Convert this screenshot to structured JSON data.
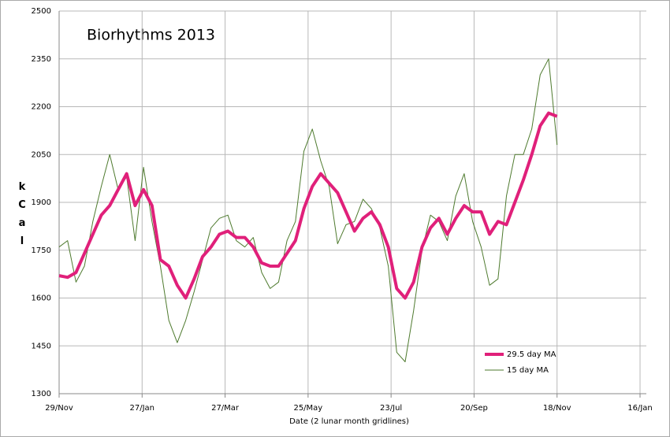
{
  "chart_data": {
    "type": "line",
    "title": "Biorhythms 2013",
    "xlabel": "Date (2 lunar month  gridlines)",
    "ylabel": "kCal",
    "x": [
      0,
      6,
      12,
      18,
      24,
      30,
      36,
      42,
      48,
      54,
      60,
      66,
      72,
      78,
      84,
      90,
      96,
      102,
      108,
      114,
      120,
      126,
      132,
      138,
      144,
      150,
      156,
      162,
      168,
      174,
      180,
      186,
      192,
      198,
      204,
      210,
      216,
      222,
      228,
      234,
      240,
      246,
      252,
      258,
      264,
      270,
      276,
      282,
      288,
      294,
      300,
      306,
      312,
      318,
      324,
      330,
      336,
      342,
      348,
      354
    ],
    "series": [
      {
        "name": "29.5 day MA",
        "color": "#e0207a",
        "width": 4,
        "values": [
          1670,
          1665,
          1680,
          1740,
          1800,
          1860,
          1890,
          1940,
          1990,
          1890,
          1940,
          1890,
          1720,
          1700,
          1640,
          1600,
          1660,
          1730,
          1760,
          1800,
          1810,
          1790,
          1790,
          1760,
          1710,
          1700,
          1700,
          1740,
          1780,
          1880,
          1950,
          1990,
          1960,
          1930,
          1870,
          1810,
          1850,
          1870,
          1830,
          1760,
          1630,
          1600,
          1650,
          1760,
          1820,
          1850,
          1800,
          1850,
          1890,
          1870,
          1870,
          1800,
          1840,
          1830,
          1900,
          1970,
          2050,
          2140,
          2180,
          2170
        ]
      },
      {
        "name": "15 day MA",
        "color": "#4e7a2e",
        "width": 1,
        "values": [
          1760,
          1780,
          1650,
          1700,
          1840,
          1950,
          2050,
          1940,
          1980,
          1780,
          2010,
          1840,
          1700,
          1530,
          1460,
          1530,
          1620,
          1720,
          1820,
          1850,
          1860,
          1780,
          1760,
          1790,
          1680,
          1630,
          1650,
          1780,
          1840,
          2060,
          2130,
          2030,
          1950,
          1770,
          1830,
          1840,
          1910,
          1880,
          1820,
          1700,
          1430,
          1400,
          1560,
          1750,
          1860,
          1840,
          1780,
          1920,
          1990,
          1840,
          1760,
          1640,
          1660,
          1920,
          2050,
          2050,
          2130,
          2300,
          2350,
          2080
        ]
      }
    ],
    "xlim": [
      0,
      413
    ],
    "xticks": [
      {
        "value": 0,
        "label": "29/Nov"
      },
      {
        "value": 59,
        "label": "27/Jan"
      },
      {
        "value": 118,
        "label": "27/Mar"
      },
      {
        "value": 177,
        "label": "25/May"
      },
      {
        "value": 236,
        "label": "23/Jul"
      },
      {
        "value": 295,
        "label": "20/Sep"
      },
      {
        "value": 354,
        "label": "18/Nov"
      },
      {
        "value": 413,
        "label": "16/Jan"
      }
    ],
    "ylim": [
      1300,
      2500
    ],
    "yticks": [
      1300,
      1450,
      1600,
      1750,
      1900,
      2050,
      2200,
      2350,
      2500
    ],
    "grid": true,
    "legend": "lower right"
  }
}
